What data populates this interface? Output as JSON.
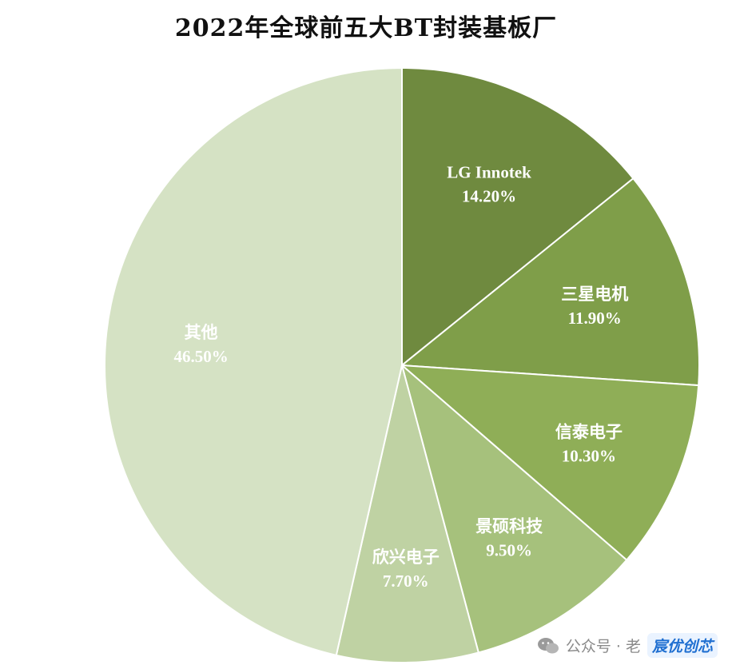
{
  "chart_data": {
    "type": "pie",
    "title": "2022年全球前五大BT封装基板厂",
    "slices": [
      {
        "label": "LG Innotek",
        "value": 14.2,
        "display": "14.20%",
        "color": "#6f8a3f"
      },
      {
        "label": "三星电机",
        "value": 11.9,
        "display": "11.90%",
        "color": "#7f9e49"
      },
      {
        "label": "信泰电子",
        "value": 10.3,
        "display": "10.30%",
        "color": "#8fae57"
      },
      {
        "label": "景硕科技",
        "value": 9.5,
        "display": "9.50%",
        "color": "#a6c17c"
      },
      {
        "label": "欣兴电子",
        "value": 7.7,
        "display": "7.70%",
        "color": "#bfd2a3"
      },
      {
        "label": "其他",
        "value": 46.5,
        "display": "46.50%",
        "color": "#d5e2c4"
      }
    ],
    "start_angle_deg": 0,
    "direction": "clockwise",
    "legend": "none"
  },
  "watermark": {
    "text": "公众号 · 老",
    "logo_text": "宸优创芯"
  }
}
